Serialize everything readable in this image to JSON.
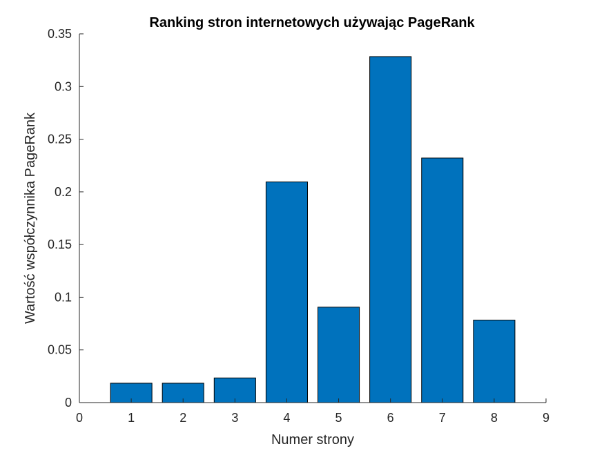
{
  "chart_data": {
    "type": "bar",
    "title": "Ranking stron internetowych używając PageRank",
    "xlabel": "Numer strony",
    "ylabel": "Wartość współczynnika PageRank",
    "categories": [
      1,
      2,
      3,
      4,
      5,
      6,
      7,
      8
    ],
    "values": [
      0.0184,
      0.0184,
      0.0234,
      0.2095,
      0.0906,
      0.3284,
      0.2321,
      0.0783
    ],
    "xlim": [
      0,
      9
    ],
    "ylim": [
      0,
      0.35
    ],
    "xticks": [
      "0",
      "1",
      "2",
      "3",
      "4",
      "5",
      "6",
      "7",
      "8",
      "9"
    ],
    "yticks": [
      "0",
      "0.05",
      "0.1",
      "0.15",
      "0.2",
      "0.25",
      "0.3",
      "0.35"
    ],
    "bar_color": "#0072BD",
    "grid": false,
    "legend": "none"
  }
}
